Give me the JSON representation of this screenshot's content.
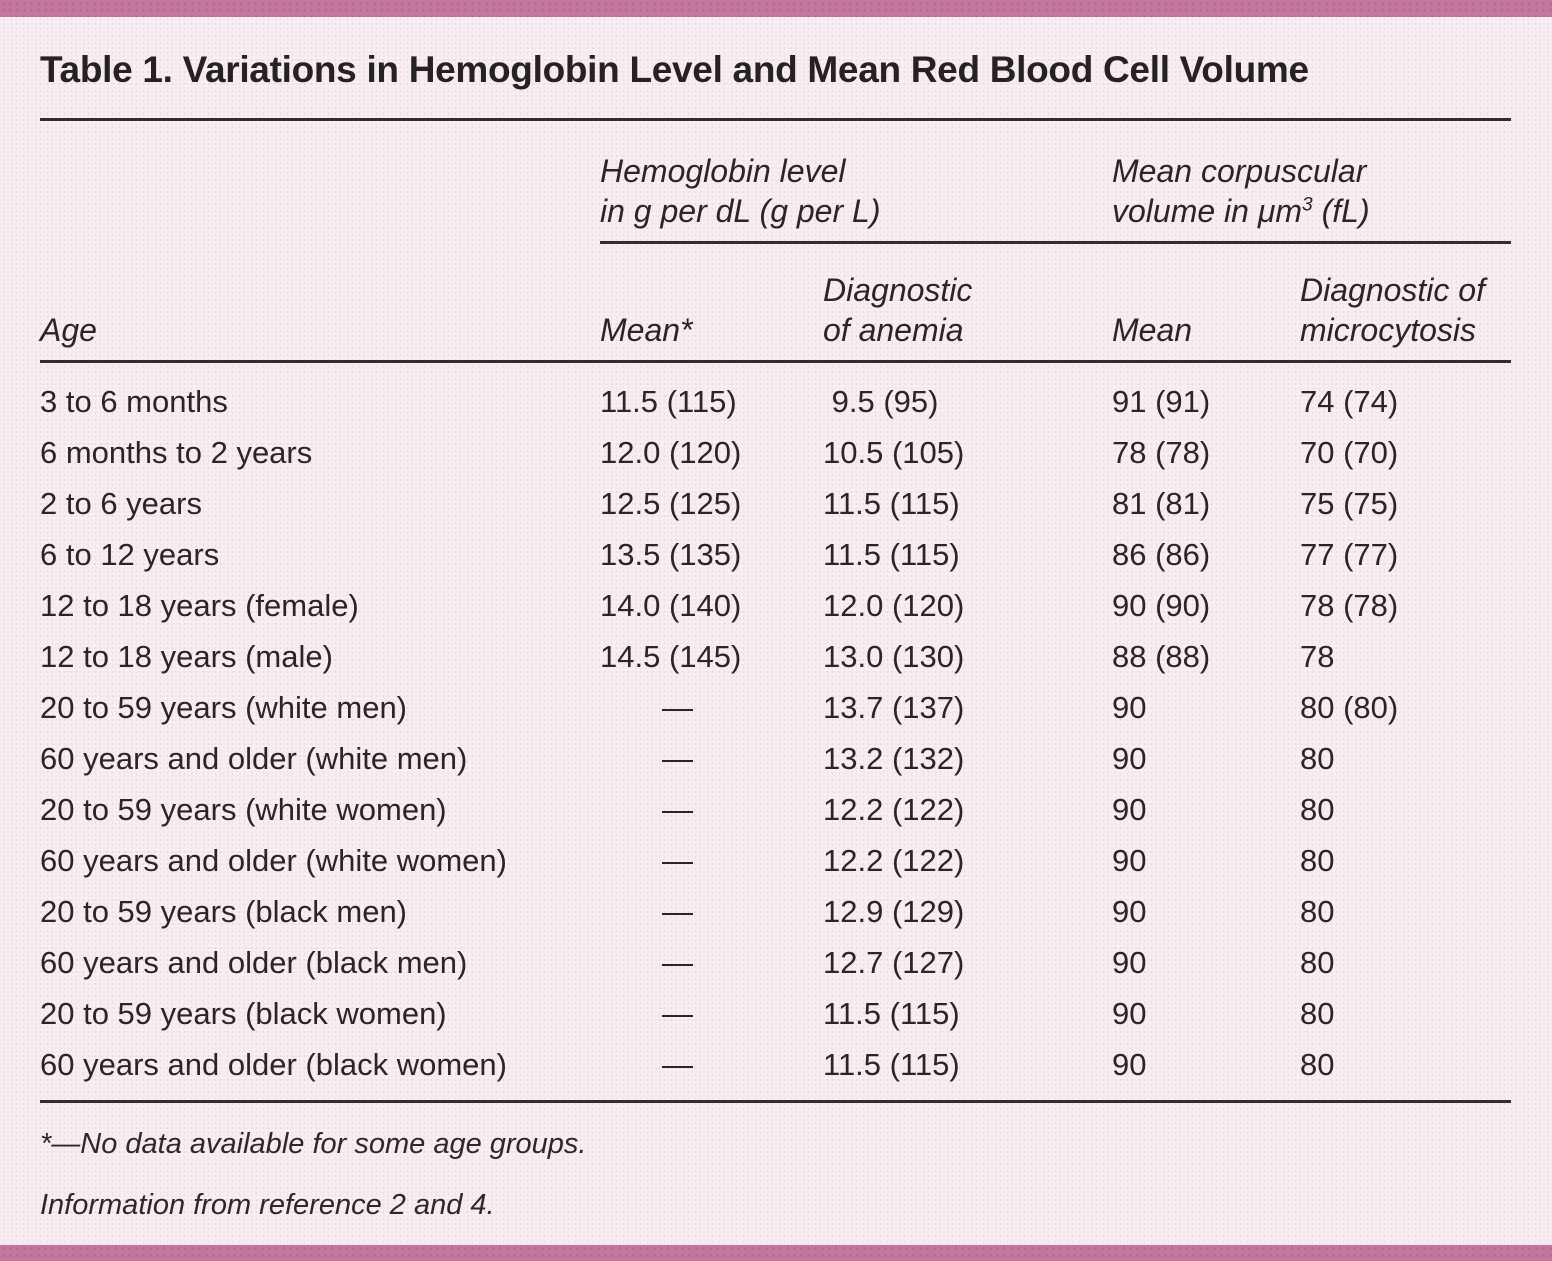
{
  "colors": {
    "border_bar": "#c6769e",
    "page_background": "#f5e8ee",
    "text": "#2b2527",
    "rule": "#332d2e"
  },
  "table": {
    "title": "Table 1. Variations in Hemoglobin Level and Mean Red Blood Cell Volume",
    "col_groups": [
      {
        "line1": "Hemoglobin level",
        "line2": "in g per dL (g per L)"
      },
      {
        "line1": "Mean corpuscular",
        "line2_pre": "volume in μm",
        "line2_sup": "3",
        "line2_post": " (fL)"
      }
    ],
    "columns": {
      "age": "Age",
      "hgb_mean": "Mean*",
      "anemia_line1": "Diagnostic",
      "anemia_line2": "of anemia",
      "mcv_mean": "Mean",
      "micro_line1": "Diagnostic of",
      "micro_line2": "microcytosis"
    },
    "rows": [
      {
        "age": "3 to 6 months",
        "hgb_mean": "11.5 (115)",
        "anemia": " 9.5 (95)",
        "mcv_mean": "91 (91)",
        "micro": "74 (74)"
      },
      {
        "age": "6 months to 2 years",
        "hgb_mean": "12.0 (120)",
        "anemia": "10.5 (105)",
        "mcv_mean": "78 (78)",
        "micro": "70 (70)"
      },
      {
        "age": "2 to 6 years",
        "hgb_mean": "12.5 (125)",
        "anemia": "11.5 (115)",
        "mcv_mean": "81 (81)",
        "micro": "75 (75)"
      },
      {
        "age": "6 to 12 years",
        "hgb_mean": "13.5 (135)",
        "anemia": "11.5 (115)",
        "mcv_mean": "86 (86)",
        "micro": "77 (77)"
      },
      {
        "age": "12 to 18 years (female)",
        "hgb_mean": "14.0 (140)",
        "anemia": "12.0 (120)",
        "mcv_mean": "90 (90)",
        "micro": "78 (78)"
      },
      {
        "age": "12 to 18 years (male)",
        "hgb_mean": "14.5 (145)",
        "anemia": "13.0 (130)",
        "mcv_mean": "88 (88)",
        "micro": "78"
      },
      {
        "age": "20 to 59 years (white men)",
        "hgb_mean": "—",
        "anemia": "13.7 (137)",
        "mcv_mean": "90",
        "micro": "80 (80)"
      },
      {
        "age": "60 years and older (white men)",
        "hgb_mean": "—",
        "anemia": "13.2 (132)",
        "mcv_mean": "90",
        "micro": "80"
      },
      {
        "age": "20 to 59 years (white women)",
        "hgb_mean": "—",
        "anemia": "12.2 (122)",
        "mcv_mean": "90",
        "micro": "80"
      },
      {
        "age": "60 years and older (white women)",
        "hgb_mean": "—",
        "anemia": "12.2 (122)",
        "mcv_mean": "90",
        "micro": "80"
      },
      {
        "age": "20 to 59 years (black men)",
        "hgb_mean": "—",
        "anemia": "12.9 (129)",
        "mcv_mean": "90",
        "micro": "80"
      },
      {
        "age": "60 years and older (black men)",
        "hgb_mean": "—",
        "anemia": "12.7 (127)",
        "mcv_mean": "90",
        "micro": "80"
      },
      {
        "age": "20 to 59 years (black women)",
        "hgb_mean": "—",
        "anemia": "11.5 (115)",
        "mcv_mean": "90",
        "micro": "80"
      },
      {
        "age": "60 years and older (black women)",
        "hgb_mean": "—",
        "anemia": "11.5 (115)",
        "mcv_mean": "90",
        "micro": "80"
      }
    ],
    "footnotes": [
      "*—No data available for some age groups.",
      "Information from reference 2 and 4."
    ]
  }
}
